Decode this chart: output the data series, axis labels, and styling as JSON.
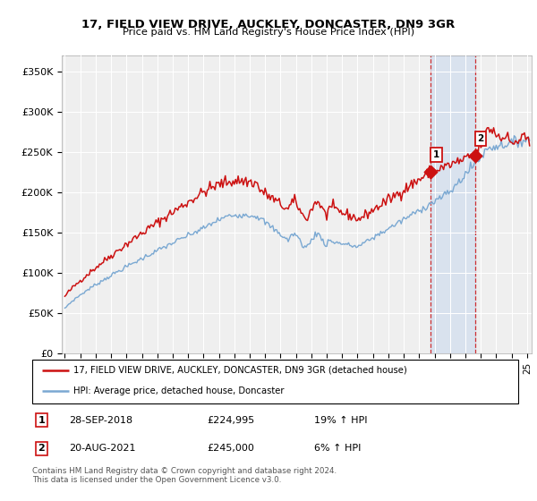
{
  "title": "17, FIELD VIEW DRIVE, AUCKLEY, DONCASTER, DN9 3GR",
  "subtitle": "Price paid vs. HM Land Registry's House Price Index (HPI)",
  "ylabel_ticks": [
    "£0",
    "£50K",
    "£100K",
    "£150K",
    "£200K",
    "£250K",
    "£300K",
    "£350K"
  ],
  "ytick_values": [
    0,
    50000,
    100000,
    150000,
    200000,
    250000,
    300000,
    350000
  ],
  "ylim": [
    0,
    370000
  ],
  "xlim_start": 1994.8,
  "xlim_end": 2025.3,
  "hpi_color": "#7aa8d2",
  "price_color": "#cc1111",
  "marker1_x": 2018.75,
  "marker1_y": 224995,
  "marker2_x": 2021.63,
  "marker2_y": 245000,
  "vline1_x": 2018.75,
  "vline2_x": 2021.63,
  "legend_line1": "17, FIELD VIEW DRIVE, AUCKLEY, DONCASTER, DN9 3GR (detached house)",
  "legend_line2": "HPI: Average price, detached house, Doncaster",
  "footer": "Contains HM Land Registry data © Crown copyright and database right 2024.\nThis data is licensed under the Open Government Licence v3.0.",
  "background_color": "#ffffff",
  "plot_bg_color": "#efefef"
}
